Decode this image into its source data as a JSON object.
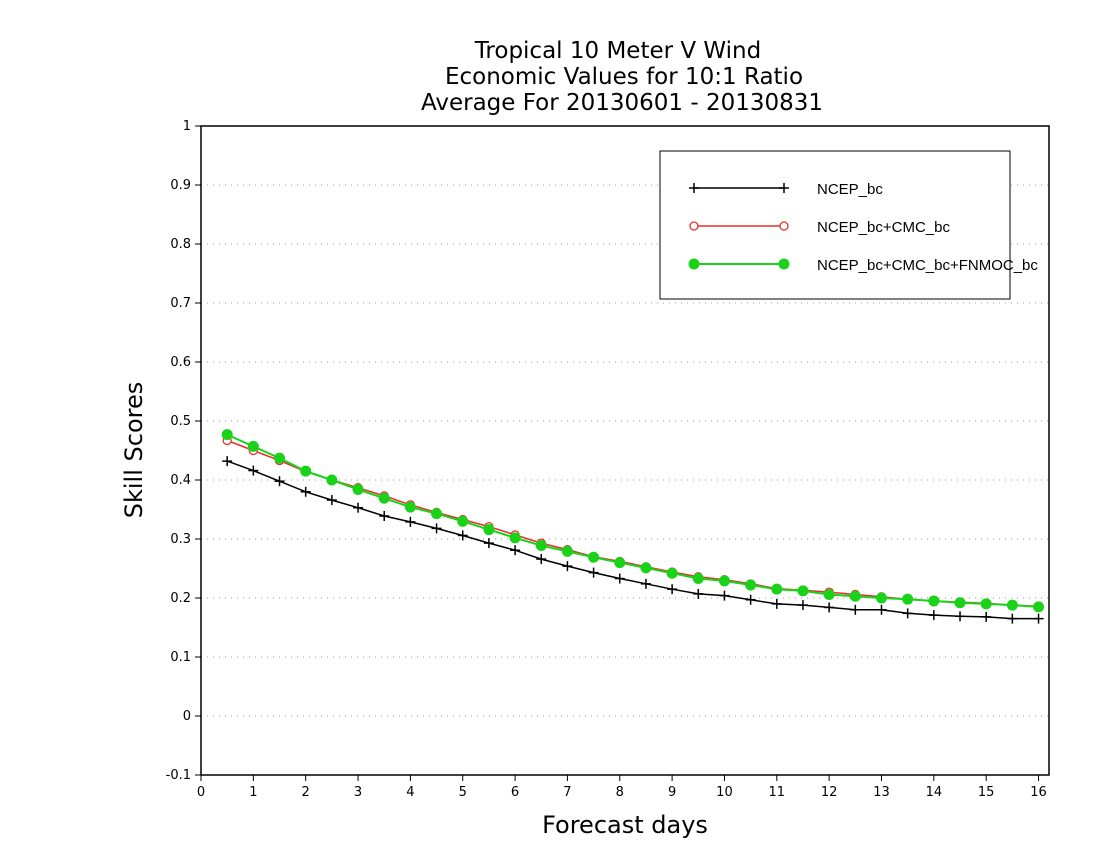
{
  "chart_data": {
    "type": "line",
    "title_lines": [
      "Tropical 10 Meter V Wind",
      "Economic Values for 10:1 Ratio",
      "Average For 20130601 - 20130831"
    ],
    "xlabel": "Forecast days",
    "ylabel": "Skill Scores",
    "xlim": [
      0,
      16.2
    ],
    "ylim": [
      -0.1,
      1
    ],
    "xticks": [
      0,
      1,
      2,
      3,
      4,
      5,
      6,
      7,
      8,
      9,
      10,
      11,
      12,
      13,
      14,
      15,
      16
    ],
    "yticks": [
      -0.1,
      0,
      0.1,
      0.2,
      0.3,
      0.4,
      0.5,
      0.6,
      0.7,
      0.8,
      0.9,
      1
    ],
    "ytick_labels": [
      "-0.1",
      "0",
      "0.1",
      "0.2",
      "0.3",
      "0.4",
      "0.5",
      "0.6",
      "0.7",
      "0.8",
      "0.9",
      "1"
    ],
    "grid": "horizontal dotted",
    "legend_position": "top-right",
    "x": [
      0.5,
      1,
      1.5,
      2,
      2.5,
      3,
      3.5,
      4,
      4.5,
      5,
      5.5,
      6,
      6.5,
      7,
      7.5,
      8,
      8.5,
      9,
      9.5,
      10,
      10.5,
      11,
      11.5,
      12,
      12.5,
      13,
      13.5,
      14,
      14.5,
      15,
      15.5,
      16
    ],
    "series": [
      {
        "name": "NCEP_bc",
        "color": "#000000",
        "marker": "plus",
        "values": [
          0.432,
          0.416,
          0.398,
          0.38,
          0.366,
          0.353,
          0.339,
          0.329,
          0.318,
          0.306,
          0.293,
          0.281,
          0.266,
          0.254,
          0.243,
          0.233,
          0.224,
          0.215,
          0.207,
          0.204,
          0.197,
          0.19,
          0.188,
          0.184,
          0.18,
          0.18,
          0.174,
          0.171,
          0.169,
          0.168,
          0.165,
          0.165
        ]
      },
      {
        "name": "NCEP_bc+CMC_bc",
        "color": "#e8302a",
        "marker": "open-circle",
        "values": [
          0.467,
          0.45,
          0.433,
          0.414,
          0.4,
          0.387,
          0.373,
          0.358,
          0.345,
          0.333,
          0.321,
          0.307,
          0.293,
          0.282,
          0.27,
          0.262,
          0.253,
          0.244,
          0.236,
          0.231,
          0.224,
          0.216,
          0.213,
          0.21,
          0.206,
          0.202,
          0.198,
          0.195,
          0.193,
          0.191,
          0.188,
          0.186
        ]
      },
      {
        "name": "NCEP_bc+CMC_bc+FNMOC_bc",
        "color": "#19d219",
        "marker": "filled-circle",
        "values": [
          0.477,
          0.457,
          0.437,
          0.415,
          0.4,
          0.384,
          0.369,
          0.354,
          0.343,
          0.33,
          0.316,
          0.302,
          0.289,
          0.279,
          0.269,
          0.26,
          0.251,
          0.242,
          0.233,
          0.229,
          0.222,
          0.215,
          0.212,
          0.206,
          0.203,
          0.2,
          0.198,
          0.195,
          0.192,
          0.19,
          0.188,
          0.185
        ]
      }
    ]
  }
}
